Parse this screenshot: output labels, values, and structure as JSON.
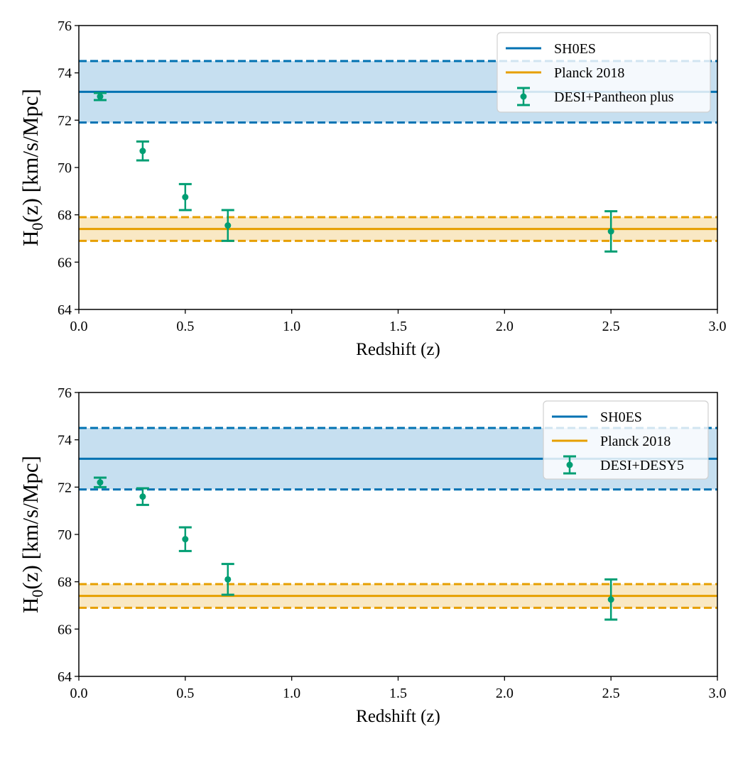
{
  "chart_data": [
    {
      "type": "errorbar",
      "xlabel": "Redshift (z)",
      "ylabel": {
        "main": "H",
        "sub": "0",
        "rest": "(z) [km/s/Mpc]"
      },
      "xlim": [
        0.0,
        3.0
      ],
      "ylim": [
        64,
        76
      ],
      "xticks": [
        "0.0",
        "0.5",
        "1.0",
        "1.5",
        "2.0",
        "2.5",
        "3.0"
      ],
      "yticks": [
        "64",
        "66",
        "68",
        "70",
        "72",
        "74",
        "76"
      ],
      "grid": false,
      "legend_position": "top-right",
      "reference_bands": [
        {
          "name": "SH0ES",
          "value": 73.2,
          "lower": 71.9,
          "upper": 74.5,
          "color": "#0072b2",
          "fill": "#c6dff0"
        },
        {
          "name": "Planck 2018",
          "value": 67.4,
          "lower": 66.9,
          "upper": 67.9,
          "color": "#e69f00",
          "fill": "#f9e8c4"
        }
      ],
      "series": [
        {
          "name": "DESI+Pantheon plus",
          "color": "#009e73",
          "points": [
            {
              "x": 0.1,
              "y": 73.0,
              "err_low": 0.15,
              "err_high": 0.15
            },
            {
              "x": 0.3,
              "y": 70.7,
              "err_low": 0.4,
              "err_high": 0.4
            },
            {
              "x": 0.5,
              "y": 68.75,
              "err_low": 0.55,
              "err_high": 0.55
            },
            {
              "x": 0.7,
              "y": 67.55,
              "err_low": 0.65,
              "err_high": 0.65
            },
            {
              "x": 2.5,
              "y": 67.3,
              "err_low": 0.85,
              "err_high": 0.85
            }
          ]
        }
      ]
    },
    {
      "type": "errorbar",
      "xlabel": "Redshift (z)",
      "ylabel": {
        "main": "H",
        "sub": "0",
        "rest": "(z) [km/s/Mpc]"
      },
      "xlim": [
        0.0,
        3.0
      ],
      "ylim": [
        64,
        76
      ],
      "xticks": [
        "0.0",
        "0.5",
        "1.0",
        "1.5",
        "2.0",
        "2.5",
        "3.0"
      ],
      "yticks": [
        "64",
        "66",
        "68",
        "70",
        "72",
        "74",
        "76"
      ],
      "grid": false,
      "legend_position": "top-right",
      "reference_bands": [
        {
          "name": "SH0ES",
          "value": 73.2,
          "lower": 71.9,
          "upper": 74.5,
          "color": "#0072b2",
          "fill": "#c6dff0"
        },
        {
          "name": "Planck 2018",
          "value": 67.4,
          "lower": 66.9,
          "upper": 67.9,
          "color": "#e69f00",
          "fill": "#f9e8c4"
        }
      ],
      "series": [
        {
          "name": "DESI+DESY5",
          "color": "#009e73",
          "points": [
            {
              "x": 0.1,
              "y": 72.2,
              "err_low": 0.2,
              "err_high": 0.2
            },
            {
              "x": 0.3,
              "y": 71.6,
              "err_low": 0.35,
              "err_high": 0.35
            },
            {
              "x": 0.5,
              "y": 69.8,
              "err_low": 0.5,
              "err_high": 0.5
            },
            {
              "x": 0.7,
              "y": 68.1,
              "err_low": 0.65,
              "err_high": 0.65
            },
            {
              "x": 2.5,
              "y": 67.25,
              "err_low": 0.85,
              "err_high": 0.85
            }
          ]
        }
      ]
    }
  ]
}
